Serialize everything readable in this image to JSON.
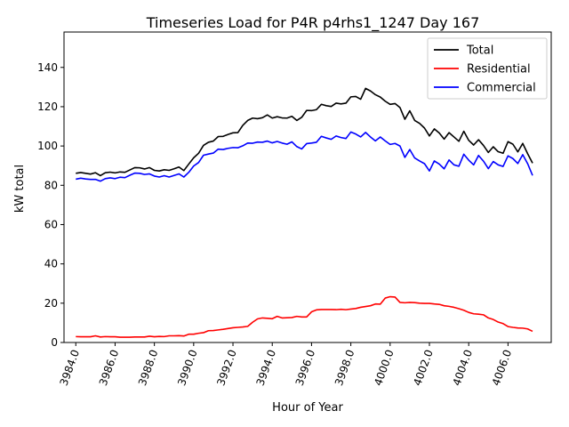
{
  "chart_data": {
    "type": "line",
    "title": "Timeseries Load for P4R p4rhs1_1247  Day 167",
    "xlabel": "Hour of Year",
    "ylabel": "kW total",
    "xlim": [
      3983.4,
      4008.2
    ],
    "ylim": [
      0,
      158
    ],
    "grid": false,
    "legend_position": "top-right",
    "x_ticks": [
      3984,
      3986,
      3988,
      3990,
      3992,
      3994,
      3996,
      3998,
      4000,
      4002,
      4004,
      4006
    ],
    "x_tick_labels": [
      "3984.0",
      "3986.0",
      "3988.0",
      "3990.0",
      "3992.0",
      "3994.0",
      "3996.0",
      "3998.0",
      "4000.0",
      "4002.0",
      "4004.0",
      "4006.0"
    ],
    "y_ticks": [
      0,
      20,
      40,
      60,
      80,
      100,
      120,
      140
    ],
    "y_tick_labels": [
      "0",
      "20",
      "40",
      "60",
      "80",
      "100",
      "120",
      "140"
    ],
    "x_start": 3984.0,
    "x_step": 0.25,
    "series": [
      {
        "name": "Total",
        "color": "#000000",
        "values": [
          86.1,
          86.5,
          86.1,
          85.7,
          86.4,
          84.9,
          86.4,
          86.7,
          86.3,
          86.8,
          86.6,
          87.8,
          89.0,
          88.9,
          88.3,
          89.0,
          87.6,
          87.3,
          87.9,
          87.6,
          88.4,
          89.3,
          87.5,
          90.8,
          94.0,
          96.3,
          100.3,
          101.9,
          102.5,
          104.8,
          104.9,
          105.9,
          106.7,
          106.8,
          110.5,
          113.0,
          114.2,
          113.9,
          114.4,
          115.8,
          114.2,
          114.9,
          114.3,
          114.2,
          115.1,
          113.0,
          114.6,
          118.1,
          118.0,
          118.5,
          121.2,
          120.5,
          120.1,
          121.8,
          121.4,
          121.8,
          125.0,
          125.2,
          123.8,
          129.3,
          128.0,
          126.1,
          124.9,
          122.8,
          121.2,
          121.6,
          119.6,
          113.6,
          117.9,
          113.0,
          111.5,
          109.1,
          105.1,
          108.7,
          106.6,
          103.5,
          106.8,
          104.6,
          102.4,
          107.5,
          102.9,
          100.5,
          103.2,
          100.3,
          96.7,
          99.6,
          97.1,
          96.3,
          102.2,
          100.9,
          97.0,
          101.3,
          96.1,
          91.3
        ]
      },
      {
        "name": "Residential",
        "color": "#ff0000",
        "values": [
          3.0,
          2.9,
          2.9,
          2.9,
          3.4,
          2.8,
          3.0,
          2.9,
          2.9,
          2.7,
          2.7,
          2.7,
          2.8,
          2.8,
          2.8,
          3.2,
          2.9,
          3.1,
          3.0,
          3.4,
          3.4,
          3.5,
          3.3,
          4.2,
          4.2,
          4.7,
          5.0,
          6.0,
          6.1,
          6.4,
          6.7,
          7.1,
          7.5,
          7.7,
          7.9,
          8.2,
          10.3,
          12.0,
          12.5,
          12.3,
          12.1,
          13.3,
          12.5,
          12.6,
          12.7,
          13.3,
          13.0,
          13.0,
          15.6,
          16.6,
          16.8,
          16.8,
          16.8,
          16.7,
          16.9,
          16.7,
          17.0,
          17.3,
          17.9,
          18.3,
          18.7,
          19.6,
          19.5,
          22.6,
          23.3,
          23.1,
          20.4,
          20.2,
          20.4,
          20.3,
          20.0,
          19.9,
          19.9,
          19.6,
          19.4,
          18.7,
          18.4,
          17.9,
          17.2,
          16.4,
          15.3,
          14.6,
          14.4,
          14.1,
          12.5,
          11.7,
          10.4,
          9.6,
          8.1,
          7.7,
          7.4,
          7.3,
          6.9,
          5.7
        ]
      },
      {
        "name": "Commercial",
        "color": "#0000ff",
        "values": [
          83.1,
          83.6,
          83.2,
          83.0,
          83.0,
          82.1,
          83.4,
          83.8,
          83.4,
          84.1,
          83.9,
          85.1,
          86.2,
          86.1,
          85.5,
          85.8,
          84.7,
          84.2,
          84.9,
          84.2,
          85.0,
          85.8,
          84.2,
          86.6,
          89.8,
          91.6,
          95.3,
          95.9,
          96.4,
          98.4,
          98.2,
          98.8,
          99.2,
          99.1,
          100.1,
          101.5,
          101.4,
          102.0,
          101.9,
          102.5,
          101.6,
          102.3,
          101.5,
          100.9,
          102.1,
          99.7,
          98.5,
          101.2,
          101.5,
          101.9,
          104.9,
          104.1,
          103.4,
          105.1,
          104.3,
          103.8,
          107.1,
          106.1,
          104.6,
          106.9,
          104.6,
          102.6,
          104.6,
          102.6,
          100.8,
          101.3,
          100.0,
          94.2,
          98.2,
          93.9,
          92.4,
          91.0,
          87.3,
          92.4,
          90.8,
          88.4,
          92.9,
          90.4,
          89.7,
          95.8,
          92.8,
          90.4,
          95.2,
          92.3,
          88.5,
          92.1,
          90.4,
          89.6,
          95.0,
          93.6,
          91.1,
          95.6,
          91.0,
          85.0
        ]
      }
    ]
  }
}
